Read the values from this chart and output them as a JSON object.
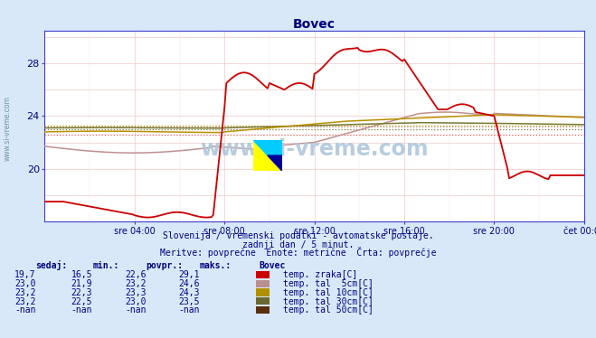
{
  "title": "Bovec",
  "bg_color": "#d8e8f8",
  "plot_bg_color": "#ffffff",
  "x_labels": [
    "sre 04:00",
    "sre 08:00",
    "sre 12:00",
    "sre 16:00",
    "sre 20:00",
    "čet 00:00"
  ],
  "y_ticks": [
    20,
    24,
    28
  ],
  "y_min": 16.0,
  "y_max": 30.5,
  "subtitle1": "Slovenija / vremenski podatki - avtomatske postaje.",
  "subtitle2": "zadnji dan / 5 minut.",
  "subtitle3": "Meritve: povprečne  Enote: metrične  Črta: povprečje",
  "table_header": [
    "sedaj:",
    "min.:",
    "povpr.:",
    "maks.:",
    "Bovec"
  ],
  "table_rows": [
    [
      "19,7",
      "16,5",
      "22,6",
      "29,1",
      "temp. zraka[C]"
    ],
    [
      "23,0",
      "21,9",
      "23,2",
      "24,6",
      "temp. tal  5cm[C]"
    ],
    [
      "23,2",
      "22,3",
      "23,3",
      "24,3",
      "temp. tal 10cm[C]"
    ],
    [
      "23,2",
      "22,5",
      "23,0",
      "23,5",
      "temp. tal 30cm[C]"
    ],
    [
      "-nan",
      "-nan",
      "-nan",
      "-nan",
      "temp. tal 50cm[C]"
    ]
  ],
  "line_colors": [
    "#cc0000",
    "#c09090",
    "#b89000",
    "#787830",
    "#604018"
  ],
  "avg_colors": [
    "#ff6060",
    "#d0a0a0",
    "#c8a800",
    "#888848",
    "#704820"
  ],
  "table_box_colors": [
    "#cc0000",
    "#b89090",
    "#b09000",
    "#686830",
    "#583010"
  ],
  "watermark": "www.si-vreme.com",
  "air_avg": 22.6,
  "tal5_avg": 23.2,
  "tal10_avg": 23.3,
  "tal30_avg": 23.0
}
